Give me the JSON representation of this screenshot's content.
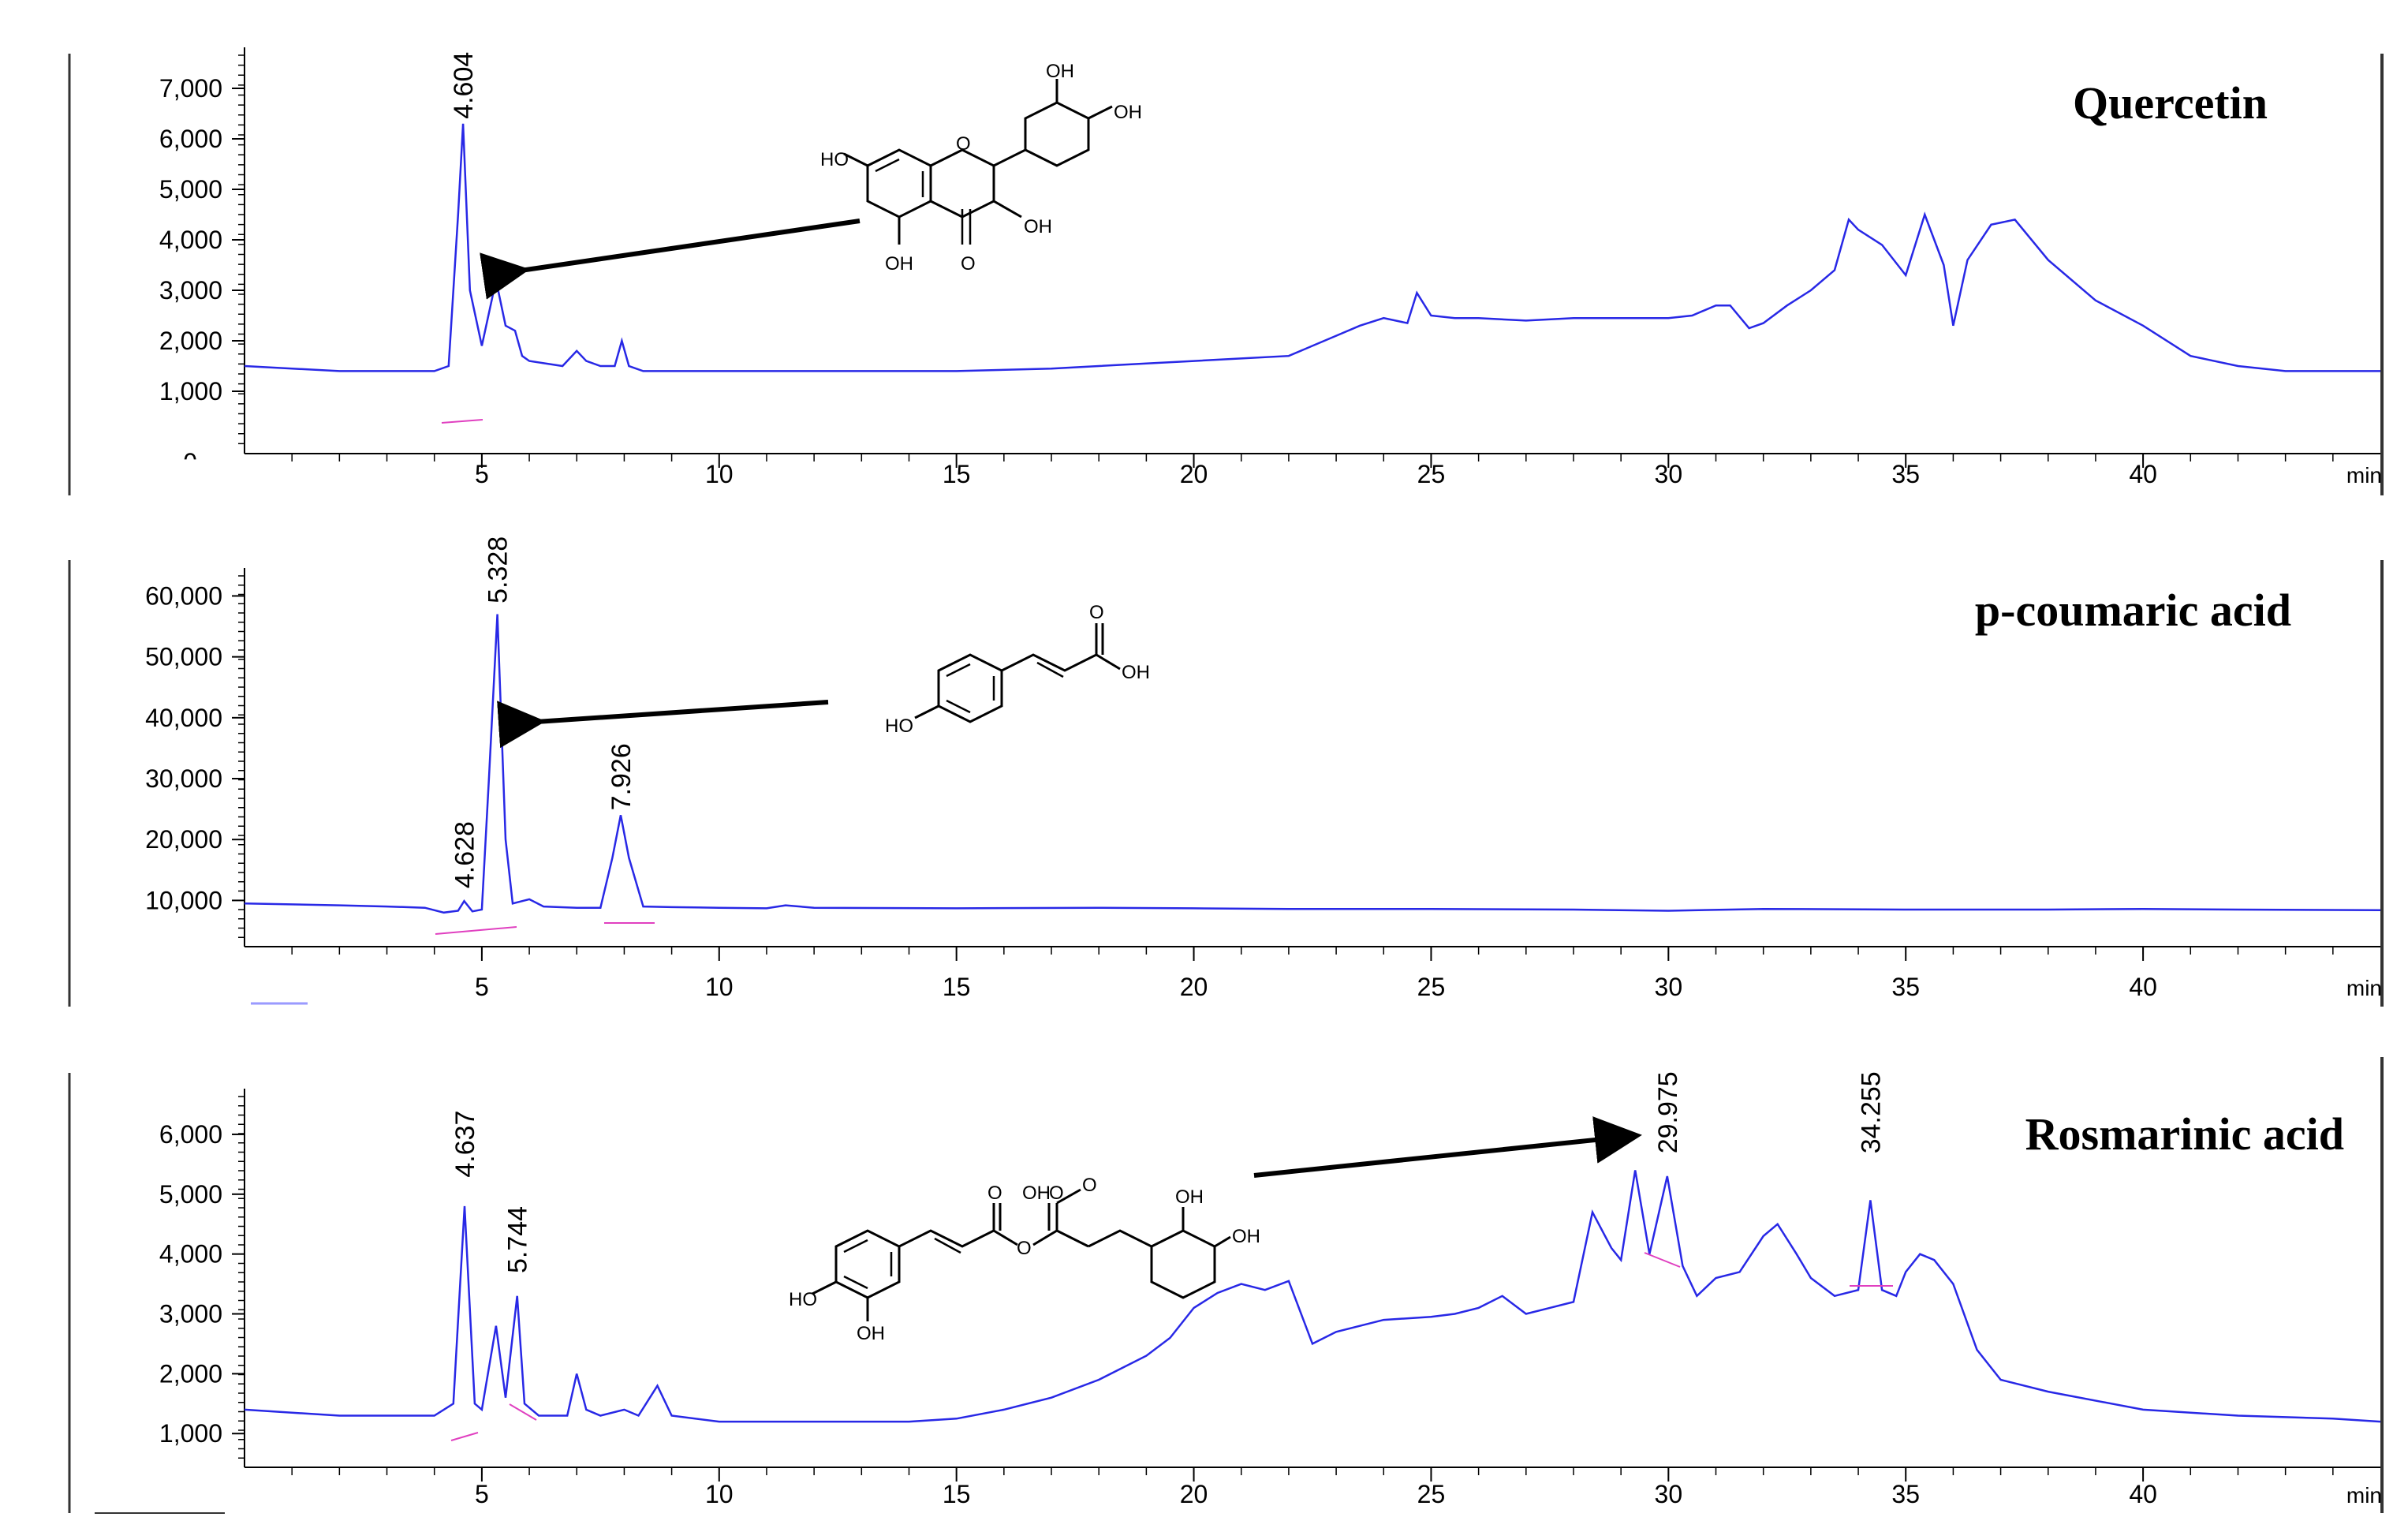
{
  "chart_data": [
    {
      "type": "line",
      "title": "Quercetin",
      "xlabel": "",
      "ylabel": "",
      "x_unit": "min",
      "xlim": [
        0,
        45
      ],
      "ylim": [
        0,
        7500
      ],
      "y_ticks": [
        {
          "v": 1000,
          "t": "1,000"
        },
        {
          "v": 2000,
          "t": "2,000"
        },
        {
          "v": 3000,
          "t": "3,000"
        },
        {
          "v": 4000,
          "t": "4,000"
        },
        {
          "v": 5000,
          "t": "5,000"
        },
        {
          "v": 6000,
          "t": "6,000"
        },
        {
          "v": 7000,
          "t": "7,000"
        }
      ],
      "y_cut_label": "0",
      "x_ticks": [
        5,
        10,
        15,
        20,
        25,
        30,
        35,
        40
      ],
      "color": "#2828e6",
      "peak_labels": [
        {
          "x": 4.604,
          "y": 6300,
          "text": "4.604"
        }
      ],
      "structure_labels": [
        "HO",
        "O",
        "OH",
        "OH",
        "OH",
        "OH",
        "O"
      ],
      "series": [
        {
          "x": [
            0,
            2,
            4,
            4.3,
            4.5,
            4.604,
            4.75,
            5,
            5.3,
            5.5,
            5.7,
            5.85,
            6,
            6.7,
            7,
            7.2,
            7.5,
            7.8,
            7.95,
            8.1,
            8.4,
            9,
            10,
            12,
            14,
            15,
            17,
            18,
            19,
            20,
            21,
            22,
            22.5,
            23,
            23.5,
            24,
            24.5,
            24.7,
            25,
            25.5,
            26,
            27,
            28,
            29,
            30,
            30.5,
            31,
            31.3,
            31.7,
            32,
            32.5,
            33,
            33.5,
            33.8,
            34,
            34.5,
            35,
            35.4,
            35.8,
            36,
            36.3,
            36.8,
            37.3,
            38,
            39,
            40,
            41,
            42,
            43,
            44,
            45
          ],
          "y": [
            1500,
            1400,
            1400,
            1500,
            4500,
            6300,
            3000,
            1900,
            3200,
            2300,
            2200,
            1700,
            1600,
            1500,
            1800,
            1600,
            1500,
            1500,
            2000,
            1500,
            1400,
            1400,
            1400,
            1400,
            1400,
            1400,
            1450,
            1500,
            1550,
            1600,
            1650,
            1700,
            1900,
            2100,
            2300,
            2450,
            2350,
            2950,
            2500,
            2450,
            2450,
            2400,
            2450,
            2450,
            2450,
            2500,
            2700,
            2700,
            2250,
            2350,
            2700,
            3000,
            3400,
            4400,
            4200,
            3900,
            3300,
            4500,
            3500,
            2300,
            3600,
            4300,
            4400,
            3600,
            2800,
            2300,
            1700,
            1500,
            1400,
            1400,
            1400
          ]
        }
      ]
    },
    {
      "type": "line",
      "title": "p-coumaric acid",
      "xlabel": "",
      "ylabel": "",
      "x_unit": "min",
      "xlim": [
        0,
        45
      ],
      "ylim": [
        5000,
        62000
      ],
      "y_ticks": [
        {
          "v": 10000,
          "t": "10,000"
        },
        {
          "v": 20000,
          "t": "20,000"
        },
        {
          "v": 30000,
          "t": "30,000"
        },
        {
          "v": 40000,
          "t": "40,000"
        },
        {
          "v": 50000,
          "t": "50,000"
        },
        {
          "v": 60000,
          "t": "60,000"
        }
      ],
      "x_ticks": [
        5,
        10,
        15,
        20,
        25,
        30,
        35,
        40
      ],
      "color": "#2828e6",
      "peak_labels": [
        {
          "x": 4.628,
          "y": 11200,
          "text": "4.628"
        },
        {
          "x": 5.328,
          "y": 58000,
          "text": "5.328"
        },
        {
          "x": 7.926,
          "y": 24000,
          "text": "7.926"
        }
      ],
      "structure_labels": [
        "O",
        "OH",
        "HO"
      ],
      "series": [
        {
          "x": [
            0,
            2,
            3,
            3.8,
            4.2,
            4.5,
            4.628,
            4.8,
            5,
            5.15,
            5.328,
            5.5,
            5.65,
            6,
            6.3,
            7,
            7.5,
            7.75,
            7.926,
            8.1,
            8.4,
            9,
            10,
            11,
            11.4,
            12,
            15,
            18,
            20,
            22,
            25,
            28,
            30,
            32,
            35,
            38,
            40,
            42,
            45
          ],
          "y": [
            9500,
            9200,
            9000,
            8800,
            8000,
            8300,
            9900,
            8200,
            8500,
            30000,
            57000,
            20000,
            9500,
            10200,
            9000,
            8800,
            8800,
            17000,
            24000,
            17000,
            9000,
            8900,
            8800,
            8700,
            9200,
            8800,
            8700,
            8800,
            8700,
            8600,
            8600,
            8500,
            8300,
            8600,
            8500,
            8500,
            8600,
            8500,
            8400
          ]
        }
      ]
    },
    {
      "type": "line",
      "title": "Rosmarinic acid",
      "xlabel": "",
      "ylabel": "",
      "x_unit": "min",
      "xlim": [
        0,
        45
      ],
      "ylim": [
        700,
        6500
      ],
      "y_ticks": [
        {
          "v": 1000,
          "t": "1,000"
        },
        {
          "v": 2000,
          "t": "2,000"
        },
        {
          "v": 3000,
          "t": "3,000"
        },
        {
          "v": 4000,
          "t": "4,000"
        },
        {
          "v": 5000,
          "t": "5,000"
        },
        {
          "v": 6000,
          "t": "6,000"
        }
      ],
      "x_ticks": [
        5,
        10,
        15,
        20,
        25,
        30,
        35,
        40
      ],
      "color": "#2828e6",
      "peak_labels": [
        {
          "x": 4.637,
          "y": 5200,
          "text": "4.637"
        },
        {
          "x": 5.744,
          "y": 3600,
          "text": "5.744"
        },
        {
          "x": 29.975,
          "y": 5600,
          "text": "29.975"
        },
        {
          "x": 34.255,
          "y": 5600,
          "text": "34.255"
        }
      ],
      "structure_labels": [
        "O",
        "O",
        "OH",
        "OH",
        "OH",
        "O",
        "O",
        "HO",
        "OH"
      ],
      "series": [
        {
          "x": [
            0,
            2,
            4,
            4.4,
            4.637,
            4.85,
            5,
            5.3,
            5.5,
            5.744,
            5.9,
            6.2,
            6.8,
            7,
            7.2,
            7.5,
            8,
            8.3,
            8.7,
            9,
            10,
            12,
            14,
            15,
            16,
            17,
            18,
            19,
            19.5,
            20,
            20.5,
            21,
            21.5,
            22,
            22.5,
            23,
            24,
            25,
            25.5,
            26,
            26.5,
            27,
            27.5,
            28,
            28.4,
            28.8,
            29,
            29.3,
            29.6,
            29.975,
            30.3,
            30.6,
            31,
            31.5,
            32,
            32.3,
            32.7,
            33,
            33.5,
            34,
            34.255,
            34.5,
            34.8,
            35,
            35.3,
            35.6,
            36,
            36.5,
            37,
            38,
            40,
            42,
            44,
            45
          ],
          "y": [
            1400,
            1300,
            1300,
            1500,
            4800,
            1500,
            1400,
            2800,
            1600,
            3300,
            1500,
            1300,
            1300,
            2000,
            1400,
            1300,
            1400,
            1300,
            1800,
            1300,
            1200,
            1200,
            1200,
            1250,
            1400,
            1600,
            1900,
            2300,
            2600,
            3100,
            3350,
            3500,
            3400,
            3550,
            2500,
            2700,
            2900,
            2950,
            3000,
            3100,
            3300,
            3000,
            3100,
            3200,
            4700,
            4100,
            3900,
            5400,
            4000,
            5300,
            3800,
            3300,
            3600,
            3700,
            4300,
            4500,
            4000,
            3600,
            3300,
            3400,
            4900,
            3400,
            3300,
            3700,
            4000,
            3900,
            3500,
            2400,
            1900,
            1700,
            1400,
            1300,
            1250,
            1200
          ]
        }
      ]
    }
  ]
}
